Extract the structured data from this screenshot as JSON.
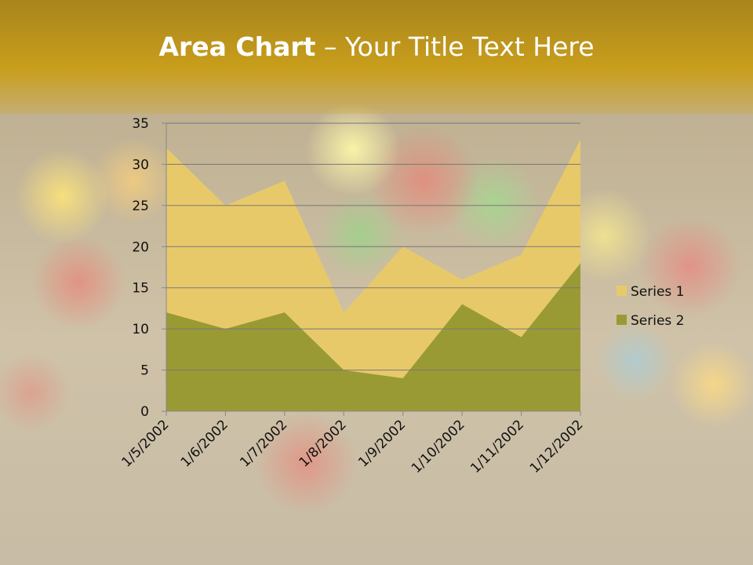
{
  "chart_data": {
    "type": "area",
    "title": [
      "Area Chart",
      "– Your Title Text Here"
    ],
    "categories": [
      "1/5/2002",
      "1/6/2002",
      "1/7/2002",
      "1/8/2002",
      "1/9/2002",
      "1/10/2002",
      "1/11/2002",
      "1/12/2002"
    ],
    "series": [
      {
        "name": "Series 1",
        "color": "#e8c96a",
        "values": [
          32,
          25,
          28,
          12,
          20,
          16,
          19,
          33
        ]
      },
      {
        "name": "Series 2",
        "color": "#9a9a35",
        "values": [
          12,
          10,
          12,
          5,
          4,
          13,
          9,
          18
        ]
      }
    ],
    "ylim": [
      0,
      35
    ],
    "yticks": [
      0,
      5,
      10,
      15,
      20,
      25,
      30,
      35
    ],
    "grid": true,
    "legend": "right"
  }
}
